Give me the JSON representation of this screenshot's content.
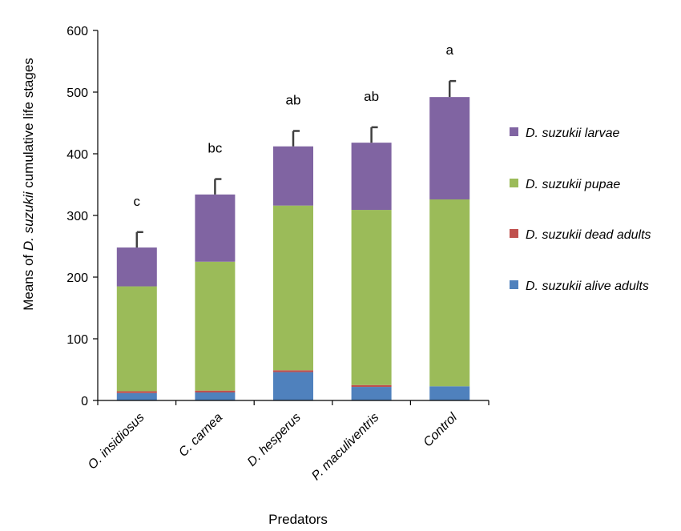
{
  "chart_data": {
    "type": "bar",
    "stacked": true,
    "categories": [
      "O. insidiosus",
      "C. carnea",
      "D. hesperus",
      "P. maculiventris",
      "Control"
    ],
    "series": [
      {
        "name": "D. suzukii alive adults",
        "color": "#4f81bd",
        "values": [
          12,
          13,
          46,
          22,
          23
        ]
      },
      {
        "name": "D. suzukii dead adults",
        "color": "#c0504d",
        "values": [
          3,
          3,
          3,
          3,
          0
        ]
      },
      {
        "name": "D. suzukii pupae",
        "color": "#9bbb59",
        "values": [
          170,
          209,
          267,
          284,
          303
        ]
      },
      {
        "name": "D. suzukii larvae",
        "color": "#8064a2",
        "values": [
          63,
          109,
          96,
          109,
          166
        ]
      }
    ],
    "error_bars": [
      25,
      25,
      25,
      25,
      26
    ],
    "significance_labels": [
      "c",
      "bc",
      "ab",
      "ab",
      "a"
    ],
    "ylabel_prefix": "Means of ",
    "ylabel_species": "D. suzukii",
    "ylabel_suffix": " cumulative life stages",
    "xlabel": "Predators",
    "ylim": [
      0,
      600
    ],
    "yticks": [
      0,
      100,
      200,
      300,
      400,
      500,
      600
    ],
    "grid": false,
    "legend_position": "right",
    "legend_order": [
      3,
      2,
      1,
      0
    ]
  }
}
